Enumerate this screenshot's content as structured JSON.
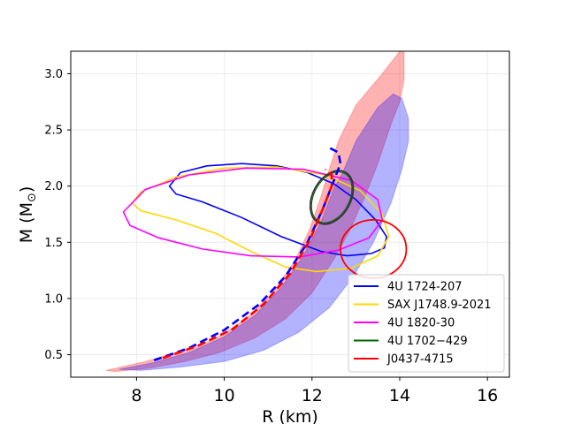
{
  "chart_data": {
    "type": "line",
    "xlabel": "R (km)",
    "ylabel_main": "M (M",
    "ylabel_sub": "⊙",
    "ylabel_close": ")",
    "xlim": [
      6.5,
      16.5
    ],
    "ylim": [
      0.3,
      3.2
    ],
    "xticks": [
      {
        "value": 8,
        "label": "8"
      },
      {
        "value": 10,
        "label": "10"
      },
      {
        "value": 12,
        "label": "12"
      },
      {
        "value": 14,
        "label": "14"
      },
      {
        "value": 16,
        "label": "16"
      }
    ],
    "yticks": [
      {
        "value": 0.5,
        "label": "0.5"
      },
      {
        "value": 1.0,
        "label": "1.0"
      },
      {
        "value": 1.5,
        "label": "1.5"
      },
      {
        "value": 2.0,
        "label": "2.0"
      },
      {
        "value": 2.5,
        "label": "2.5"
      },
      {
        "value": 3.0,
        "label": "3.0"
      }
    ],
    "grid": true,
    "legend_position": "lower-right",
    "bands": [
      {
        "color": "#ff0000",
        "opacity": 0.3,
        "outline": [
          [
            7.35,
            0.36
          ],
          [
            8.2,
            0.45
          ],
          [
            9.5,
            0.63
          ],
          [
            10.5,
            0.9
          ],
          [
            11.3,
            1.2
          ],
          [
            11.9,
            1.55
          ],
          [
            12.3,
            1.85
          ],
          [
            12.6,
            2.15
          ],
          [
            13.0,
            2.45
          ],
          [
            13.4,
            2.72
          ],
          [
            13.9,
            2.98
          ],
          [
            14.2,
            3.2
          ],
          [
            14.15,
            3.2
          ],
          [
            13.6,
            2.98
          ],
          [
            13.0,
            2.72
          ],
          [
            12.6,
            2.48
          ],
          [
            12.2,
            2.2
          ],
          [
            11.95,
            1.95
          ],
          [
            11.6,
            1.65
          ],
          [
            11.1,
            1.35
          ],
          [
            10.6,
            1.1
          ],
          [
            10.0,
            0.85
          ],
          [
            9.3,
            0.65
          ],
          [
            8.4,
            0.47
          ],
          [
            7.35,
            0.36
          ]
        ],
        "polygon": [
          [
            7.3,
            0.36
          ],
          [
            8.2,
            0.44
          ],
          [
            9.0,
            0.53
          ],
          [
            9.8,
            0.64
          ],
          [
            10.5,
            0.82
          ],
          [
            11.1,
            1.05
          ],
          [
            11.6,
            1.33
          ],
          [
            11.95,
            1.62
          ],
          [
            12.2,
            1.9
          ],
          [
            12.35,
            2.1
          ],
          [
            12.6,
            2.4
          ],
          [
            13.0,
            2.72
          ],
          [
            13.6,
            3.0
          ],
          [
            14.0,
            3.2
          ],
          [
            14.1,
            3.2
          ],
          [
            14.1,
            3.1
          ],
          [
            14.1,
            2.95
          ],
          [
            14.0,
            2.75
          ],
          [
            13.8,
            2.55
          ],
          [
            13.5,
            2.2
          ],
          [
            13.2,
            1.9
          ],
          [
            12.85,
            1.6
          ],
          [
            12.5,
            1.35
          ],
          [
            12.0,
            1.05
          ],
          [
            11.4,
            0.82
          ],
          [
            10.7,
            0.65
          ],
          [
            9.9,
            0.52
          ],
          [
            9.1,
            0.44
          ],
          [
            8.3,
            0.38
          ],
          [
            7.5,
            0.35
          ]
        ]
      },
      {
        "color": "#0000ff",
        "opacity": 0.3,
        "polygon": [
          [
            7.6,
            0.37
          ],
          [
            8.4,
            0.43
          ],
          [
            9.2,
            0.52
          ],
          [
            10.0,
            0.66
          ],
          [
            10.7,
            0.85
          ],
          [
            11.3,
            1.1
          ],
          [
            11.8,
            1.38
          ],
          [
            12.2,
            1.68
          ],
          [
            12.5,
            1.98
          ],
          [
            12.7,
            2.12
          ],
          [
            13.0,
            2.4
          ],
          [
            13.5,
            2.7
          ],
          [
            13.85,
            2.82
          ],
          [
            14.05,
            2.78
          ],
          [
            14.2,
            2.6
          ],
          [
            14.2,
            2.4
          ],
          [
            14.05,
            2.15
          ],
          [
            13.8,
            1.85
          ],
          [
            13.4,
            1.5
          ],
          [
            12.95,
            1.2
          ],
          [
            12.4,
            0.92
          ],
          [
            11.7,
            0.7
          ],
          [
            10.9,
            0.54
          ],
          [
            10.0,
            0.44
          ],
          [
            9.0,
            0.39
          ],
          [
            8.1,
            0.36
          ],
          [
            7.6,
            0.37
          ]
        ],
        "notch": [
          [
            11.55,
            2.12
          ],
          [
            11.8,
            2.05
          ],
          [
            12.0,
            2.05
          ],
          [
            12.15,
            2.12
          ]
        ]
      }
    ],
    "curves": [
      {
        "color": "#0000ff",
        "dashed": true,
        "points": [
          [
            8.4,
            0.45
          ],
          [
            9.2,
            0.56
          ],
          [
            10.0,
            0.72
          ],
          [
            10.8,
            0.95
          ],
          [
            11.4,
            1.2
          ],
          [
            11.9,
            1.5
          ],
          [
            12.25,
            1.8
          ],
          [
            12.5,
            2.05
          ],
          [
            12.65,
            2.2
          ],
          [
            12.6,
            2.3
          ],
          [
            12.35,
            2.35
          ]
        ]
      },
      {
        "color": "#ff0000",
        "dashed": true,
        "points": [
          [
            8.6,
            0.47
          ],
          [
            9.4,
            0.58
          ],
          [
            10.2,
            0.73
          ],
          [
            10.9,
            0.95
          ],
          [
            11.5,
            1.22
          ],
          [
            11.95,
            1.52
          ],
          [
            12.25,
            1.8
          ],
          [
            12.45,
            2.0
          ],
          [
            12.45,
            2.1
          ],
          [
            12.3,
            2.15
          ]
        ]
      }
    ],
    "series": [
      {
        "name": "4U 1724-207",
        "color": "#0000ff",
        "points": [
          [
            8.75,
            2.0
          ],
          [
            9.0,
            2.12
          ],
          [
            9.6,
            2.18
          ],
          [
            10.4,
            2.2
          ],
          [
            11.2,
            2.18
          ],
          [
            11.9,
            2.12
          ],
          [
            12.5,
            2.02
          ],
          [
            13.0,
            1.88
          ],
          [
            13.45,
            1.7
          ],
          [
            13.7,
            1.55
          ],
          [
            13.65,
            1.45
          ],
          [
            13.35,
            1.4
          ],
          [
            12.8,
            1.38
          ],
          [
            12.2,
            1.42
          ],
          [
            11.3,
            1.55
          ],
          [
            10.4,
            1.72
          ],
          [
            9.5,
            1.86
          ],
          [
            8.9,
            1.93
          ],
          [
            8.75,
            2.0
          ]
        ]
      },
      {
        "name": "SAX J1748.9-2021",
        "color": "#ffd700",
        "points": [
          [
            7.9,
            1.85
          ],
          [
            8.1,
            1.95
          ],
          [
            8.9,
            2.08
          ],
          [
            10.0,
            2.16
          ],
          [
            11.2,
            2.17
          ],
          [
            12.3,
            2.1
          ],
          [
            13.1,
            1.96
          ],
          [
            13.6,
            1.75
          ],
          [
            13.75,
            1.55
          ],
          [
            13.5,
            1.38
          ],
          [
            12.9,
            1.27
          ],
          [
            12.1,
            1.24
          ],
          [
            11.4,
            1.28
          ],
          [
            10.6,
            1.42
          ],
          [
            9.8,
            1.58
          ],
          [
            8.9,
            1.7
          ],
          [
            8.1,
            1.78
          ],
          [
            7.9,
            1.85
          ]
        ]
      },
      {
        "name": "4U 1820-30",
        "color": "#ff00ff",
        "points": [
          [
            7.7,
            1.77
          ],
          [
            8.2,
            1.97
          ],
          [
            9.2,
            2.1
          ],
          [
            10.5,
            2.16
          ],
          [
            11.8,
            2.15
          ],
          [
            12.9,
            2.05
          ],
          [
            13.5,
            1.88
          ],
          [
            13.6,
            1.7
          ],
          [
            13.3,
            1.54
          ],
          [
            12.6,
            1.43
          ],
          [
            11.7,
            1.37
          ],
          [
            10.6,
            1.38
          ],
          [
            9.5,
            1.44
          ],
          [
            8.5,
            1.54
          ],
          [
            7.85,
            1.65
          ],
          [
            7.7,
            1.77
          ]
        ]
      },
      {
        "name": "4U 1702−429",
        "color": "#006400",
        "ellipse": {
          "cx": 12.45,
          "cy": 1.9,
          "rx": 1.3,
          "ry": 0.065,
          "angle_deg": 62
        },
        "inner_color": "#333333"
      },
      {
        "name": "J0437-4715",
        "color": "#ff0000",
        "ellipse": {
          "cx": 13.4,
          "cy": 1.44,
          "rx": 1.5,
          "ry": 0.1,
          "angle_deg": 0
        }
      }
    ]
  }
}
